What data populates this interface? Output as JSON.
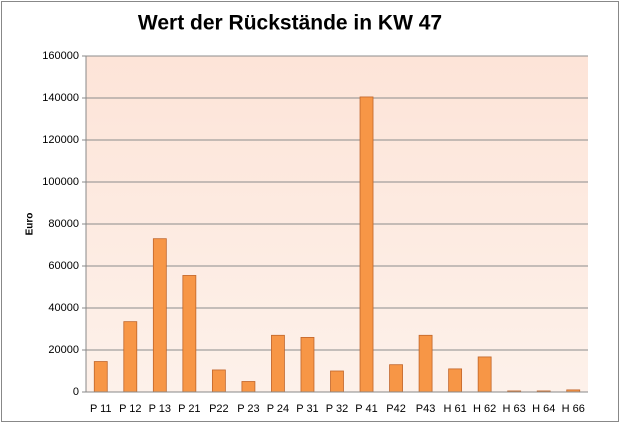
{
  "chart_data": {
    "type": "bar",
    "title": "Wert der Rückstände in KW 47",
    "y_label": "Euro",
    "categories": [
      "P 11",
      "P 12",
      "P 13",
      "P 21",
      "P22",
      "P 23",
      "P 24",
      "P 31",
      "P 32",
      "P 41",
      "P42",
      "P43",
      "H 61",
      "H 62",
      "H 63",
      "H 64",
      "H 66"
    ],
    "values": [
      14500,
      33500,
      73000,
      55500,
      10500,
      5000,
      27000,
      26000,
      10000,
      140500,
      13000,
      27000,
      11000,
      16700,
      500,
      500,
      1000
    ],
    "color": "#f79646",
    "ylim": [
      0,
      160000
    ],
    "yticks": [
      0,
      20000,
      40000,
      60000,
      80000,
      100000,
      120000,
      140000,
      160000
    ],
    "grid": true
  }
}
